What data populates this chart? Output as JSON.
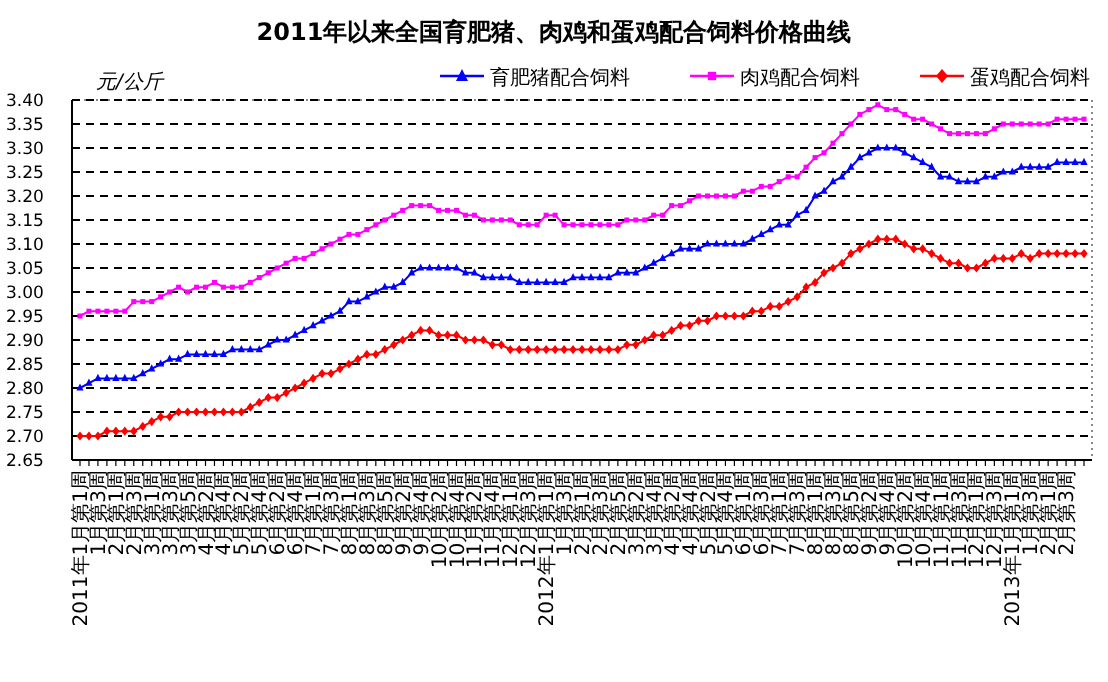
{
  "chart_data": {
    "type": "line",
    "title": "2011年以来全国育肥猪、肉鸡和蛋鸡配合饲料价格曲线",
    "ylabel": "元/公斤",
    "categories": [
      "2011年1月第1周",
      null,
      "1月第3周",
      null,
      "2月第1周",
      null,
      "2月第3周",
      null,
      "3月第1周",
      null,
      "3月第3周",
      null,
      "3月第5周",
      null,
      "4月第2周",
      null,
      "4月第4周",
      null,
      "5月第2周",
      null,
      "5月第4周",
      null,
      "6月第2周",
      null,
      "6月第4周",
      null,
      "7月第1周",
      null,
      "7月第3周",
      null,
      "8月第1周",
      null,
      "8月第3周",
      null,
      "8月第5周",
      null,
      "9月第2周",
      null,
      "9月第4周",
      null,
      "10月第2周",
      null,
      "10月第4周",
      null,
      "11月第2周",
      null,
      "11月第4周",
      null,
      "12月第1周",
      null,
      "12月第3周",
      null,
      "2012年1月第1周",
      null,
      "1月第3周",
      null,
      "2月第1周",
      null,
      "2月第3周",
      null,
      "2月第5周",
      null,
      "3月第2周",
      null,
      "3月第4周",
      null,
      "4月第2周",
      null,
      "4月第4周",
      null,
      "5月第2周",
      null,
      "5月第4周",
      null,
      "6月第1周",
      null,
      "6月第3周",
      null,
      "7月第1周",
      null,
      "7月第3周",
      null,
      "8月第1周",
      null,
      "8月第3周",
      null,
      "8月第5周",
      null,
      "9月第2周",
      null,
      "9月第4周",
      null,
      "10月第2周",
      null,
      "10月第4周",
      null,
      "11月第1周",
      null,
      "11月第3周",
      null,
      "12月第1周",
      null,
      "12月第3周",
      null,
      "2013年1月第1周",
      null,
      "1月第3周",
      null,
      "2月第1周",
      null,
      "2月第3周",
      null,
      null
    ],
    "series": [
      {
        "name": "育肥猪配合饲料",
        "color": "#0000ff",
        "marker": "triangle",
        "values": [
          2.8,
          2.81,
          2.82,
          2.82,
          2.82,
          2.82,
          2.82,
          2.83,
          2.84,
          2.85,
          2.86,
          2.86,
          2.87,
          2.87,
          2.87,
          2.87,
          2.87,
          2.88,
          2.88,
          2.88,
          2.88,
          2.89,
          2.9,
          2.9,
          2.91,
          2.92,
          2.93,
          2.94,
          2.95,
          2.96,
          2.98,
          2.98,
          2.99,
          3.0,
          3.01,
          3.01,
          3.02,
          3.04,
          3.05,
          3.05,
          3.05,
          3.05,
          3.05,
          3.04,
          3.04,
          3.03,
          3.03,
          3.03,
          3.03,
          3.02,
          3.02,
          3.02,
          3.02,
          3.02,
          3.02,
          3.03,
          3.03,
          3.03,
          3.03,
          3.03,
          3.04,
          3.04,
          3.04,
          3.05,
          3.06,
          3.07,
          3.08,
          3.09,
          3.09,
          3.09,
          3.1,
          3.1,
          3.1,
          3.1,
          3.1,
          3.11,
          3.12,
          3.13,
          3.14,
          3.14,
          3.16,
          3.17,
          3.2,
          3.21,
          3.23,
          3.24,
          3.26,
          3.28,
          3.29,
          3.3,
          3.3,
          3.3,
          3.29,
          3.28,
          3.27,
          3.26,
          3.24,
          3.24,
          3.23,
          3.23,
          3.23,
          3.24,
          3.24,
          3.25,
          3.25,
          3.26,
          3.26,
          3.26,
          3.26,
          3.27,
          3.27,
          3.27,
          3.27
        ]
      },
      {
        "name": "肉鸡配合饲料",
        "color": "#ff00ff",
        "marker": "square",
        "values": [
          2.95,
          2.96,
          2.96,
          2.96,
          2.96,
          2.96,
          2.98,
          2.98,
          2.98,
          2.99,
          3.0,
          3.01,
          3.0,
          3.01,
          3.01,
          3.02,
          3.01,
          3.01,
          3.01,
          3.02,
          3.03,
          3.04,
          3.05,
          3.06,
          3.07,
          3.07,
          3.08,
          3.09,
          3.1,
          3.11,
          3.12,
          3.12,
          3.13,
          3.14,
          3.15,
          3.16,
          3.17,
          3.18,
          3.18,
          3.18,
          3.17,
          3.17,
          3.17,
          3.16,
          3.16,
          3.15,
          3.15,
          3.15,
          3.15,
          3.14,
          3.14,
          3.14,
          3.16,
          3.16,
          3.14,
          3.14,
          3.14,
          3.14,
          3.14,
          3.14,
          3.14,
          3.15,
          3.15,
          3.15,
          3.16,
          3.16,
          3.18,
          3.18,
          3.19,
          3.2,
          3.2,
          3.2,
          3.2,
          3.2,
          3.21,
          3.21,
          3.22,
          3.22,
          3.23,
          3.24,
          3.24,
          3.26,
          3.28,
          3.29,
          3.31,
          3.33,
          3.35,
          3.37,
          3.38,
          3.39,
          3.38,
          3.38,
          3.37,
          3.36,
          3.36,
          3.35,
          3.34,
          3.33,
          3.33,
          3.33,
          3.33,
          3.33,
          3.34,
          3.35,
          3.35,
          3.35,
          3.35,
          3.35,
          3.35,
          3.36,
          3.36,
          3.36,
          3.36
        ]
      },
      {
        "name": "蛋鸡配合饲料",
        "color": "#ff0000",
        "marker": "diamond",
        "values": [
          2.7,
          2.7,
          2.7,
          2.71,
          2.71,
          2.71,
          2.71,
          2.72,
          2.73,
          2.74,
          2.74,
          2.75,
          2.75,
          2.75,
          2.75,
          2.75,
          2.75,
          2.75,
          2.75,
          2.76,
          2.77,
          2.78,
          2.78,
          2.79,
          2.8,
          2.81,
          2.82,
          2.83,
          2.83,
          2.84,
          2.85,
          2.86,
          2.87,
          2.87,
          2.88,
          2.89,
          2.9,
          2.91,
          2.92,
          2.92,
          2.91,
          2.91,
          2.91,
          2.9,
          2.9,
          2.9,
          2.89,
          2.89,
          2.88,
          2.88,
          2.88,
          2.88,
          2.88,
          2.88,
          2.88,
          2.88,
          2.88,
          2.88,
          2.88,
          2.88,
          2.88,
          2.89,
          2.89,
          2.9,
          2.91,
          2.91,
          2.92,
          2.93,
          2.93,
          2.94,
          2.94,
          2.95,
          2.95,
          2.95,
          2.95,
          2.96,
          2.96,
          2.97,
          2.97,
          2.98,
          2.99,
          3.01,
          3.02,
          3.04,
          3.05,
          3.06,
          3.08,
          3.09,
          3.1,
          3.11,
          3.11,
          3.11,
          3.1,
          3.09,
          3.09,
          3.08,
          3.07,
          3.06,
          3.06,
          3.05,
          3.05,
          3.06,
          3.07,
          3.07,
          3.07,
          3.08,
          3.07,
          3.08,
          3.08,
          3.08,
          3.08,
          3.08,
          3.08
        ]
      }
    ],
    "ylim": [
      2.65,
      3.4
    ],
    "yticks": [
      {
        "value": 2.65,
        "label": "2.65"
      },
      {
        "value": 2.7,
        "label": "2.70"
      },
      {
        "value": 2.75,
        "label": "2.75"
      },
      {
        "value": 2.8,
        "label": "2.80"
      },
      {
        "value": 2.85,
        "label": "2.85"
      },
      {
        "value": 2.9,
        "label": "2.90"
      },
      {
        "value": 2.95,
        "label": "2.95"
      },
      {
        "value": 3.0,
        "label": "3.00"
      },
      {
        "value": 3.05,
        "label": "3.05"
      },
      {
        "value": 3.1,
        "label": "3.10"
      },
      {
        "value": 3.15,
        "label": "3.15"
      },
      {
        "value": 3.2,
        "label": "3.20"
      },
      {
        "value": 3.25,
        "label": "3.25"
      },
      {
        "value": 3.3,
        "label": "3.30"
      },
      {
        "value": 3.35,
        "label": "3.35"
      },
      {
        "value": 3.4,
        "label": "3.40"
      }
    ],
    "grid": "y",
    "legend": "top right"
  }
}
